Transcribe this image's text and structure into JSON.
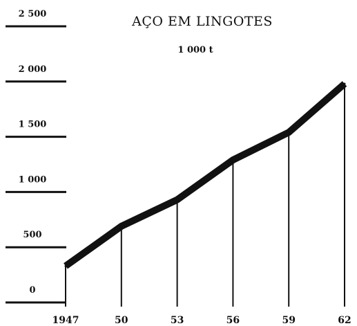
{
  "chart_data": {
    "type": "line",
    "title": "AÇO EM LINGOTES",
    "subtitle": "1 000 t",
    "xlabel": "",
    "ylabel": "",
    "x": [
      1947,
      1950,
      1953,
      1956,
      1959,
      1962
    ],
    "x_tick_labels": [
      "1947",
      "50",
      "53",
      "56",
      "59",
      "62"
    ],
    "y_ticks": [
      0,
      500,
      1000,
      1500,
      2000,
      2500
    ],
    "y_tick_labels": [
      "0",
      "500",
      "1 000",
      "1 500",
      "2 000",
      "2 500"
    ],
    "ylim": [
      0,
      2500
    ],
    "series": [
      {
        "values": [
          330,
          690,
          930,
          1290,
          1540,
          1980
        ]
      }
    ],
    "grid": false,
    "legend": "none",
    "line_color": "#111111"
  }
}
